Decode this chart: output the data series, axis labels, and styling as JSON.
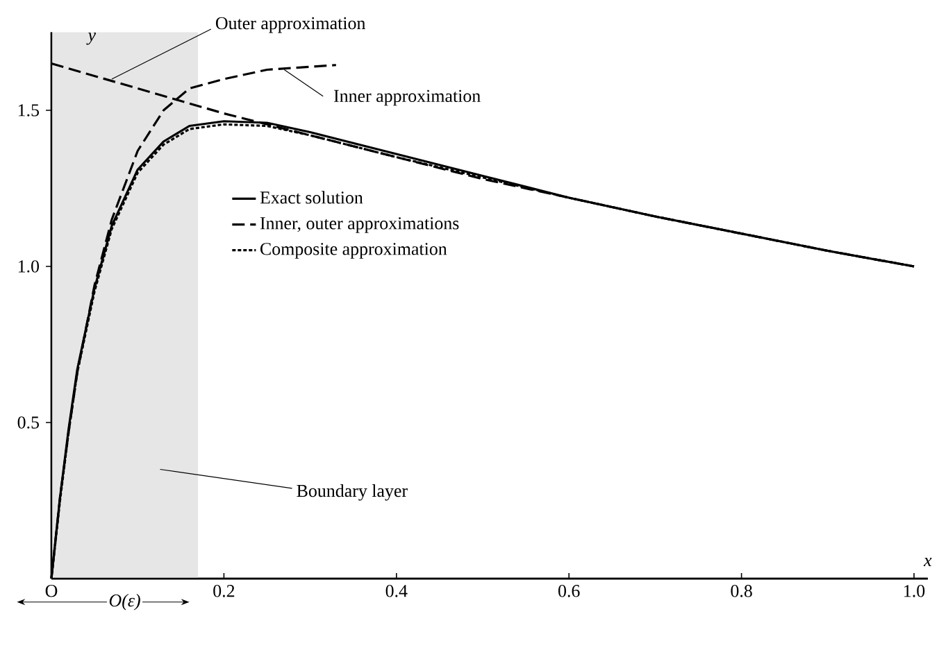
{
  "chart_data": {
    "type": "line",
    "xlabel": "x",
    "ylabel": "y",
    "xlim": [
      0,
      1.016
    ],
    "ylim": [
      0,
      1.75
    ],
    "xticks": [
      {
        "value": 0,
        "label": "O"
      },
      {
        "value": 0.2,
        "label": "0.2"
      },
      {
        "value": 0.4,
        "label": "0.4"
      },
      {
        "value": 0.6,
        "label": "0.6"
      },
      {
        "value": 0.8,
        "label": "0.8"
      },
      {
        "value": 1.0,
        "label": "1.0"
      }
    ],
    "yticks": [
      {
        "value": 0.5,
        "label": "0.5"
      },
      {
        "value": 1.0,
        "label": "1.0"
      },
      {
        "value": 1.5,
        "label": "1.5"
      }
    ],
    "grid": false,
    "legend": "center",
    "marker": "none",
    "series": [
      {
        "name": "Exact solution",
        "color": "#000000",
        "line_style": "solid",
        "x": [
          0,
          0.01,
          0.02,
          0.03,
          0.05,
          0.07,
          0.1,
          0.13,
          0.16,
          0.2,
          0.25,
          0.3,
          0.4,
          0.5,
          0.6,
          0.7,
          0.8,
          0.9,
          1.0
        ],
        "values": [
          0,
          0.26,
          0.48,
          0.67,
          0.93,
          1.13,
          1.31,
          1.4,
          1.45,
          1.465,
          1.46,
          1.43,
          1.36,
          1.29,
          1.22,
          1.16,
          1.105,
          1.05,
          1.0
        ]
      },
      {
        "name": "Inner, outer approximations",
        "color": "#000000",
        "line_style": "dashed",
        "x": [
          0,
          0.01,
          0.02,
          0.03,
          0.05,
          0.07,
          0.1,
          0.13,
          0.16,
          0.2,
          0.25,
          0.33
        ],
        "values": [
          0,
          0.26,
          0.47,
          0.66,
          0.94,
          1.15,
          1.37,
          1.5,
          1.57,
          1.6,
          1.63,
          1.645
        ]
      },
      {
        "color": "#000000",
        "line_style": "dashed",
        "x": [
          0,
          0.1,
          0.2,
          0.3,
          0.4,
          0.5,
          0.6,
          0.7,
          0.8,
          0.9,
          1.0
        ],
        "values": [
          1.65,
          1.57,
          1.49,
          1.42,
          1.35,
          1.28,
          1.22,
          1.16,
          1.105,
          1.05,
          1.0
        ]
      },
      {
        "name": "Composite approximation",
        "color": "#000000",
        "line_style": "dotted",
        "x": [
          0,
          0.01,
          0.02,
          0.03,
          0.05,
          0.07,
          0.1,
          0.13,
          0.16,
          0.2,
          0.25,
          0.3,
          0.4,
          0.5,
          0.6,
          0.7,
          0.8,
          0.9,
          1.0
        ],
        "values": [
          0,
          0.25,
          0.47,
          0.66,
          0.92,
          1.12,
          1.3,
          1.39,
          1.44,
          1.455,
          1.45,
          1.42,
          1.35,
          1.285,
          1.22,
          1.16,
          1.105,
          1.05,
          1.0
        ]
      }
    ],
    "bands": [
      {
        "axis": "x",
        "from": 0,
        "to": 0.17,
        "label": "Boundary layer",
        "color": "#e6e6e6"
      }
    ],
    "annotations": [
      {
        "text": "Outer approximation",
        "x": 0.07,
        "y": 1.6
      },
      {
        "text": "Inner approximation",
        "x": 0.27,
        "y": 1.63
      },
      "O(ε)"
    ]
  }
}
